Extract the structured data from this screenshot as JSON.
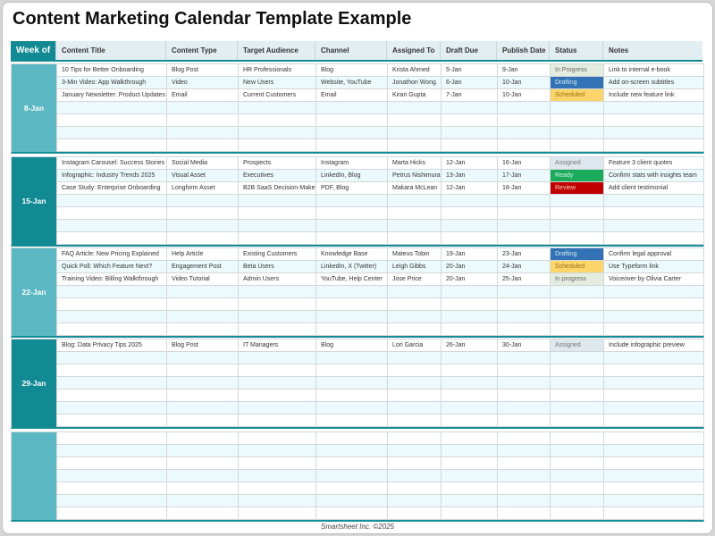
{
  "title": "Content Marketing Calendar Template Example",
  "headers": [
    "Week of",
    "Content Title",
    "Content Type",
    "Target Audience",
    "Channel",
    "Assigned To",
    "Draft Due",
    "Publish Date",
    "Status",
    "Notes"
  ],
  "status_colors": {
    "In Progress": {
      "bg": "#e3ecdf",
      "fg": "#666666"
    },
    "In progress": {
      "bg": "#e3ecdf",
      "fg": "#666666"
    },
    "Drafting": {
      "bg": "#3373b5",
      "fg": "#cfeaf0"
    },
    "Scheduled": {
      "bg": "#fdd56a",
      "fg": "#9a6b1a"
    },
    "Assigned": {
      "bg": "#dfe8ee",
      "fg": "#777777"
    },
    "Ready": {
      "bg": "#1aaa5a",
      "fg": "#d8f5e4"
    },
    "Review": {
      "bg": "#c00000",
      "fg": "#f6d0c0"
    }
  },
  "weeks": [
    {
      "week": "8-Jan",
      "color": "#5bb8c2",
      "rows": [
        [
          "10 Tips for Better Onboarding",
          "Blog Post",
          "HR Professionals",
          "Blog",
          "Krista Ahmed",
          "5-Jan",
          "9-Jan",
          "In Progress",
          "Link to internal e-book"
        ],
        [
          "3-Min Video: App Walkthrough",
          "Video",
          "New Users",
          "Website, YouTube",
          "Jonathon Wong",
          "6-Jan",
          "10-Jan",
          "Drafting",
          "Add on-screen subtitles"
        ],
        [
          "January Newsletter: Product Updates",
          "Email",
          "Current Customers",
          "Email",
          "Kiran Gupta",
          "7-Jan",
          "10-Jan",
          "Scheduled",
          "Include new feature link"
        ]
      ]
    },
    {
      "week": "15-Jan",
      "color": "#128a93",
      "rows": [
        [
          "Instagram Carousel: Success Stories",
          "Social Media",
          "Prospects",
          "Instagram",
          "Marta Hicks",
          "12-Jan",
          "16-Jan",
          "Assigned",
          "Feature 3 client quotes"
        ],
        [
          "Infographic: Industry Trends 2025",
          "Visual Asset",
          "Executives",
          "LinkedIn, Blog",
          "Petrus Nishimura",
          "13-Jan",
          "17-Jan",
          "Ready",
          "Confirm stats with insights team"
        ],
        [
          "Case Study: Enterprise Onboarding",
          "Longform Asset",
          "B2B SaaS Decision-Makers",
          "PDF, Blog",
          "Makara McLean",
          "12-Jan",
          "18-Jan",
          "Review",
          "Add client testimonial"
        ]
      ]
    },
    {
      "week": "22-Jan",
      "color": "#5bb8c2",
      "rows": [
        [
          "FAQ Article: New Pricing Explained",
          "Help Article",
          "Existing Customers",
          "Knowledge Base",
          "Mateus Tobin",
          "19-Jan",
          "23-Jan",
          "Drafting",
          "Confirm legal approval"
        ],
        [
          "Quick Poll: Which Feature Next?",
          "Engagement Post",
          "Beta Users",
          "LinkedIn, X (Twitter)",
          "Leigh Gibbs",
          "20-Jan",
          "24-Jan",
          "Scheduled",
          "Use Typeform link"
        ],
        [
          "Training Video: Billing Walkthrough",
          "Video Tutorial",
          "Admin Users",
          "YouTube, Help Center",
          "Jose Price",
          "20-Jan",
          "25-Jan",
          "In progress",
          "Voiceover by Olivia Carter"
        ]
      ]
    },
    {
      "week": "29-Jan",
      "color": "#128a93",
      "rows": [
        [
          "Blog: Data Privacy Tips 2025",
          "Blog Post",
          "IT Managers",
          "Blog",
          "Lori Garcia",
          "26-Jan",
          "30-Jan",
          "Assigned",
          "Include infographic preview"
        ]
      ]
    },
    {
      "week": "",
      "color": "#5bb8c2",
      "rows": []
    }
  ],
  "footer": "Smartsheet Inc. ©2025"
}
